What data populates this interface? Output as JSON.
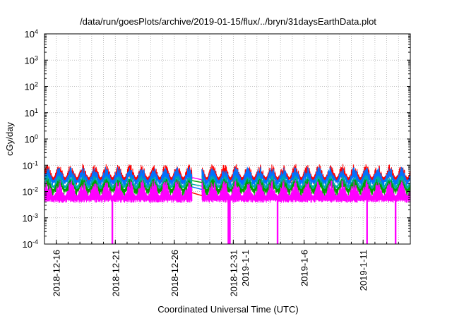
{
  "chart_data": {
    "type": "line",
    "title": "/data/run/goesPlots/archive/2019-01-15/flux/../bryn/31daysEarthData.plot",
    "xlabel": "Coordinated Universal Time (UTC)",
    "ylabel": "cGy/day",
    "yscale": "log",
    "ylim": [
      0.0001,
      10000
    ],
    "xlim": [
      "2018-12-15",
      "2019-01-15"
    ],
    "grid": true,
    "y_ticks": [
      {
        "value": 0.0001,
        "base": "10",
        "exp": "-4"
      },
      {
        "value": 0.001,
        "base": "10",
        "exp": "-3"
      },
      {
        "value": 0.01,
        "base": "10",
        "exp": "-2"
      },
      {
        "value": 0.1,
        "base": "10",
        "exp": "-1"
      },
      {
        "value": 1,
        "base": "10",
        "exp": "0"
      },
      {
        "value": 10,
        "base": "10",
        "exp": "1"
      },
      {
        "value": 100,
        "base": "10",
        "exp": "2"
      },
      {
        "value": 1000,
        "base": "10",
        "exp": "3"
      },
      {
        "value": 10000,
        "base": "10",
        "exp": "4"
      }
    ],
    "x_ticks": [
      {
        "date": "2018-12-16",
        "label": "2018-12-16"
      },
      {
        "date": "2018-12-21",
        "label": "2018-12-21"
      },
      {
        "date": "2018-12-26",
        "label": "2018-12-26"
      },
      {
        "date": "2018-12-31",
        "label": "2018-12-31"
      },
      {
        "date": "2019-01-01",
        "label": "2019-1-1"
      },
      {
        "date": "2019-01-06",
        "label": "2019-1-6"
      },
      {
        "date": "2019-01-11",
        "label": "2019-1-11"
      }
    ],
    "data_gap": [
      "2018-12-27T12:00",
      "2018-12-28T08:00"
    ],
    "dropouts": [
      "2018-12-20T18:00",
      "2018-12-30T14:00",
      "2018-12-30T17:00",
      "2019-01-03T18:00",
      "2019-01-11T08:00",
      "2019-01-13T18:00"
    ],
    "series": [
      {
        "color": "#ff0000",
        "typical": 0.045,
        "peak": 0.09
      },
      {
        "color": "#0072ff",
        "typical": 0.035,
        "peak": 0.07
      },
      {
        "color": "#00aaaa",
        "typical": 0.022,
        "peak": 0.035
      },
      {
        "color": "#00a000",
        "typical": 0.016,
        "peak": 0.025
      },
      {
        "color": "#ff00ff",
        "typical": 0.009,
        "peak": 0.022
      }
    ]
  }
}
